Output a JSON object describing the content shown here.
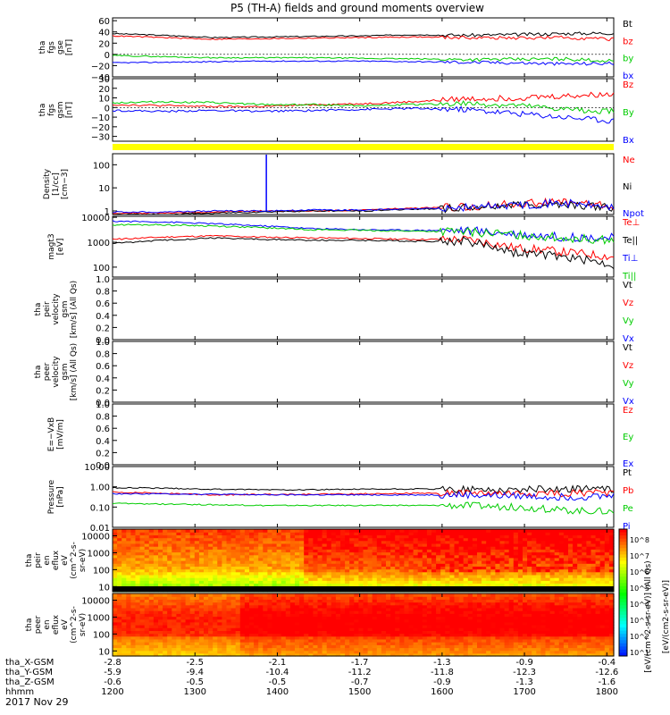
{
  "chart_data": {
    "type": "line",
    "title": "P5 (TH-A) fields and ground moments overview",
    "date": "2017 Nov 29",
    "time_range_minutes": [
      720,
      1085
    ],
    "x_ticks": [
      {
        "t": 720,
        "hhmm": "1200",
        "x": "-2.8",
        "y": "-5.9",
        "z": "-0.6"
      },
      {
        "t": 780,
        "hhmm": "1300",
        "x": "-2.5",
        "y": "-9.4",
        "z": "-0.5"
      },
      {
        "t": 840,
        "hhmm": "1400",
        "x": "-2.1",
        "y": "-10.4",
        "z": "-0.5"
      },
      {
        "t": 900,
        "hhmm": "1500",
        "x": "-1.7",
        "y": "-11.2",
        "z": "-0.7"
      },
      {
        "t": 960,
        "hhmm": "1600",
        "x": "-1.3",
        "y": "-11.8",
        "z": "-0.9"
      },
      {
        "t": 1020,
        "hhmm": "1700",
        "x": "-0.9",
        "y": "-12.3",
        "z": "-1.3"
      },
      {
        "t": 1080,
        "hhmm": "1800",
        "x": "-0.4",
        "y": "-12.6",
        "z": "-1.6"
      }
    ],
    "x_row_labels": [
      "tha_X-GSM",
      "tha_Y-GSM",
      "tha_Z-GSM",
      "hhmm"
    ],
    "colorbar": {
      "ticks": [
        "10^8",
        "10^7",
        "10^6",
        "10^5",
        "10^4",
        "10^3",
        "10^2",
        "10^1"
      ],
      "label": "[eV/(cm2-s-sr-eV)]",
      "label_top": "[eV/(cm^2-s-sr-eV)] (All Qs)"
    },
    "panels": [
      {
        "id": "fgs-gse",
        "scale": "linear",
        "ylim": [
          -40,
          65
        ],
        "ylabel": [
          "tha",
          "fgs",
          "gse",
          "[nT]"
        ],
        "yticks": [
          {
            "v": 60,
            "label": "60"
          },
          {
            "v": 40,
            "label": "40"
          },
          {
            "v": 20,
            "label": "20"
          },
          {
            "v": 0,
            "label": "0"
          },
          {
            "v": -20,
            "label": "−20"
          },
          {
            "v": -40,
            "label": "−40"
          }
        ],
        "series": [
          {
            "name": "Bt",
            "color": "#000000",
            "values": [
              37,
              34,
              30,
              31,
              32,
              33,
              35,
              34,
              35,
              37,
              38
            ]
          },
          {
            "name": "bz",
            "color": "#ff0000",
            "values": [
              33,
              30,
              27,
              28,
              29,
              30,
              31,
              30,
              29,
              30,
              27
            ]
          },
          {
            "name": "by",
            "color": "#00cc00",
            "values": [
              -2,
              -4,
              -6,
              -6,
              -6,
              -7,
              -8,
              -9,
              -9,
              -8,
              -12
            ]
          },
          {
            "name": "bx",
            "color": "#0000ff",
            "values": [
              -15,
              -14,
              -13,
              -12,
              -12,
              -12,
              -13,
              -14,
              -15,
              -17,
              -16
            ]
          }
        ]
      },
      {
        "id": "fgs-gsm",
        "scale": "linear",
        "ylim": [
          -35,
          30
        ],
        "ylabel": [
          "tha",
          "fgs",
          "gsm",
          "[nT]"
        ],
        "yticks": [
          {
            "v": 30,
            "label": "30"
          },
          {
            "v": 20,
            "label": "20"
          },
          {
            "v": 10,
            "label": "10"
          },
          {
            "v": 0,
            "label": "0"
          },
          {
            "v": -10,
            "label": "−10"
          },
          {
            "v": -20,
            "label": "−20"
          },
          {
            "v": -30,
            "label": "−30"
          }
        ],
        "series": [
          {
            "name": "Bz",
            "color": "#ff0000",
            "values": [
              3,
              2,
              1,
              1,
              3,
              4,
              6,
              9,
              10,
              12,
              14
            ]
          },
          {
            "name": "By",
            "color": "#00cc00",
            "values": [
              5,
              6,
              5,
              3,
              3,
              2,
              3,
              4,
              2,
              -2,
              -4
            ]
          },
          {
            "name": "Bx",
            "color": "#0000ff",
            "values": [
              -3,
              -4,
              -3,
              -4,
              -3,
              -2,
              -1,
              -2,
              -6,
              -10,
              -14
            ]
          }
        ]
      },
      {
        "id": "density",
        "scale": "log",
        "ylim": [
          0.7,
          300
        ],
        "ylabel": [
          "Density",
          "[1/cc]",
          "[cm−3]"
        ],
        "yticks": [
          {
            "v": 100,
            "label": "100"
          },
          {
            "v": 10,
            "label": "10"
          },
          {
            "v": 1,
            "label": "1"
          }
        ],
        "series": [
          {
            "name": "Ne",
            "color": "#ff0000",
            "values": [
              0.8,
              0.8,
              0.9,
              1.0,
              1.0,
              1.1,
              1.3,
              1.5,
              2.0,
              2.5,
              1.5
            ]
          },
          {
            "name": "Ni",
            "color": "#000000",
            "values": [
              0.7,
              0.7,
              0.8,
              0.9,
              1.0,
              1.0,
              1.2,
              1.3,
              1.8,
              2.0,
              1.3
            ]
          },
          {
            "name": "Npot",
            "color": "#0000ff",
            "values": [
              0.9,
              0.9,
              1.0,
              1.0,
              1.1,
              1.1,
              1.2,
              1.4,
              1.8,
              2.2,
              1.4
            ]
          }
        ]
      },
      {
        "id": "temperature",
        "scale": "log",
        "ylim": [
          40,
          11000
        ],
        "ylabel": [
          "magt3",
          "[eV]"
        ],
        "yticks": [
          {
            "v": 10000,
            "label": "10000"
          },
          {
            "v": 1000,
            "label": "1000"
          },
          {
            "v": 100,
            "label": "100"
          }
        ],
        "series": [
          {
            "name": "Te⊥",
            "color": "#ff0000",
            "values": [
              1300,
              1600,
              1800,
              1600,
              1500,
              1400,
              1300,
              1300,
              600,
              400,
              250
            ]
          },
          {
            "name": "Te||",
            "color": "#000000",
            "values": [
              900,
              1200,
              1500,
              1300,
              1200,
              1200,
              1100,
              1100,
              400,
              250,
              120
            ]
          },
          {
            "name": "Ti⊥",
            "color": "#0000ff",
            "values": [
              7000,
              6500,
              5500,
              4500,
              3500,
              3200,
              3000,
              3000,
              2200,
              1600,
              1500
            ]
          },
          {
            "name": "Ti||",
            "color": "#00cc00",
            "values": [
              5000,
              5000,
              4500,
              3800,
              3200,
              3000,
              2800,
              2600,
              2000,
              1500,
              1200
            ]
          }
        ]
      },
      {
        "id": "peir-velocity",
        "scale": "linear",
        "ylim": [
          0,
          1
        ],
        "empty": true,
        "ylabel": [
          "tha",
          "peir",
          "velocity",
          "gsm",
          "[km/s] (All Qs)"
        ],
        "yticks": [
          {
            "v": 1,
            "label": "1.0"
          },
          {
            "v": 0.8,
            "label": "0.8"
          },
          {
            "v": 0.6,
            "label": "0.6"
          },
          {
            "v": 0.4,
            "label": "0.4"
          },
          {
            "v": 0.2,
            "label": "0.2"
          },
          {
            "v": 0,
            "label": "0.0"
          }
        ],
        "series": [
          {
            "name": "Vt",
            "color": "#000000",
            "values": []
          },
          {
            "name": "Vz",
            "color": "#ff0000",
            "values": []
          },
          {
            "name": "Vy",
            "color": "#00cc00",
            "values": []
          },
          {
            "name": "Vx",
            "color": "#0000ff",
            "values": []
          }
        ]
      },
      {
        "id": "peer-velocity",
        "scale": "linear",
        "ylim": [
          0,
          1
        ],
        "empty": true,
        "ylabel": [
          "tha",
          "peer",
          "velocity",
          "gsm",
          "[km/s] (All Qs)"
        ],
        "yticks": [
          {
            "v": 1,
            "label": "1.0"
          },
          {
            "v": 0.8,
            "label": "0.8"
          },
          {
            "v": 0.6,
            "label": "0.6"
          },
          {
            "v": 0.4,
            "label": "0.4"
          },
          {
            "v": 0.2,
            "label": "0.2"
          },
          {
            "v": 0,
            "label": "0.0"
          }
        ],
        "series": [
          {
            "name": "Vt",
            "color": "#000000",
            "values": []
          },
          {
            "name": "Vz",
            "color": "#ff0000",
            "values": []
          },
          {
            "name": "Vy",
            "color": "#00cc00",
            "values": []
          },
          {
            "name": "Vx",
            "color": "#0000ff",
            "values": []
          }
        ]
      },
      {
        "id": "efield",
        "scale": "linear",
        "ylim": [
          0,
          1
        ],
        "empty": true,
        "ylabel": [
          "E=−VxB",
          "[mV/m]"
        ],
        "yticks": [
          {
            "v": 1,
            "label": "1.0"
          },
          {
            "v": 0.8,
            "label": "0.8"
          },
          {
            "v": 0.6,
            "label": "0.6"
          },
          {
            "v": 0.4,
            "label": "0.4"
          },
          {
            "v": 0.2,
            "label": "0.2"
          },
          {
            "v": 0,
            "label": "0.0"
          }
        ],
        "series": [
          {
            "name": "Ez",
            "color": "#ff0000",
            "values": []
          },
          {
            "name": "Ey",
            "color": "#00cc00",
            "values": []
          },
          {
            "name": "Ex",
            "color": "#0000ff",
            "values": []
          }
        ]
      },
      {
        "id": "pressure",
        "scale": "log",
        "ylim": [
          0.01,
          10
        ],
        "ylabel": [
          "Pressure",
          "[nPa]"
        ],
        "yticks": [
          {
            "v": 10,
            "label": "10.00"
          },
          {
            "v": 1,
            "label": "1.00"
          },
          {
            "v": 0.1,
            "label": "0.10"
          },
          {
            "v": 0.01,
            "label": "0.01"
          }
        ],
        "series": [
          {
            "name": "Pt",
            "color": "#000000",
            "values": [
              0.9,
              0.85,
              0.75,
              0.72,
              0.72,
              0.75,
              0.78,
              0.75,
              0.72,
              0.8,
              0.75
            ]
          },
          {
            "name": "Pb",
            "color": "#ff0000",
            "values": [
              0.55,
              0.48,
              0.4,
              0.42,
              0.43,
              0.45,
              0.48,
              0.48,
              0.45,
              0.48,
              0.5
            ]
          },
          {
            "name": "Pe",
            "color": "#00cc00",
            "values": [
              0.15,
              0.14,
              0.13,
              0.12,
              0.12,
              0.12,
              0.12,
              0.12,
              0.1,
              0.07,
              0.06
            ]
          },
          {
            "name": "Pi",
            "color": "#0000ff",
            "values": [
              0.45,
              0.45,
              0.43,
              0.4,
              0.4,
              0.4,
              0.4,
              0.4,
              0.35,
              0.32,
              0.35
            ]
          }
        ]
      },
      {
        "id": "peir-eflux",
        "type": "heatmap",
        "scale": "log",
        "ylim": [
          5,
          25000
        ],
        "ylabel": [
          "tha",
          "peir",
          "en",
          "eflux",
          "eV",
          "(cm^2-s-",
          "sr-eV)"
        ],
        "yticks": [
          {
            "v": 10000,
            "label": "10000"
          },
          {
            "v": 1000,
            "label": "1000"
          },
          {
            "v": 100,
            "label": "100"
          },
          {
            "v": 10,
            "label": "10"
          }
        ]
      },
      {
        "id": "peer-eflux",
        "type": "heatmap",
        "scale": "log",
        "ylim": [
          5,
          25000
        ],
        "ylabel": [
          "tha",
          "peer",
          "en",
          "eflux",
          "eV",
          "(cm^2-s-",
          "sr-eV)"
        ],
        "yticks": [
          {
            "v": 10000,
            "label": "10000"
          },
          {
            "v": 1000,
            "label": "1000"
          },
          {
            "v": 100,
            "label": "100"
          },
          {
            "v": 10,
            "label": "10"
          }
        ]
      }
    ]
  }
}
